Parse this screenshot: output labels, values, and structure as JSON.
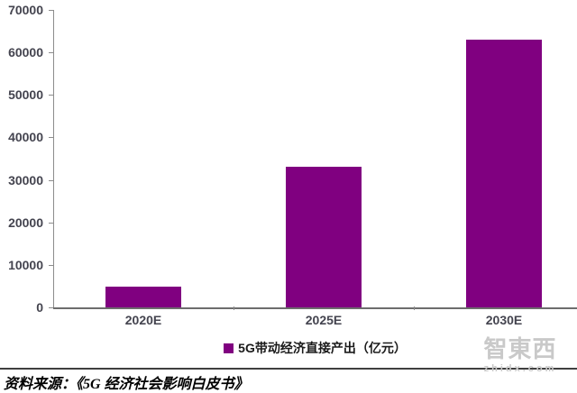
{
  "chart_data": {
    "type": "bar",
    "title": "",
    "categories": [
      "2020E",
      "2025E",
      "2030E"
    ],
    "values": [
      4840,
      33000,
      63000
    ],
    "series_name": "5G带动经济直接产出（亿元）",
    "xlabel": "",
    "ylabel": "",
    "ylim": [
      0,
      70000
    ],
    "yticks": [
      0,
      10000,
      20000,
      30000,
      40000,
      50000,
      60000,
      70000
    ],
    "grid": false,
    "legend_position": "bottom",
    "bar_color": "#800080"
  },
  "legend": {
    "label": "5G带动经济直接产出（亿元）",
    "marker_color": "#800080"
  },
  "watermark": {
    "logo_text": "智東西",
    "domain": "zhidx.com"
  },
  "source": {
    "text": "资料来源：《5G 经济社会影响白皮书》"
  },
  "colors": {
    "bar": "#800080",
    "axis_text": "#44444f",
    "axis_line": "#8c8c8c",
    "baseline": "#6d6d6d",
    "separator": "#3f3f3f",
    "watermark": "#c9c9c9",
    "legend_text": "#1a1a1a",
    "source_text": "#000000"
  }
}
